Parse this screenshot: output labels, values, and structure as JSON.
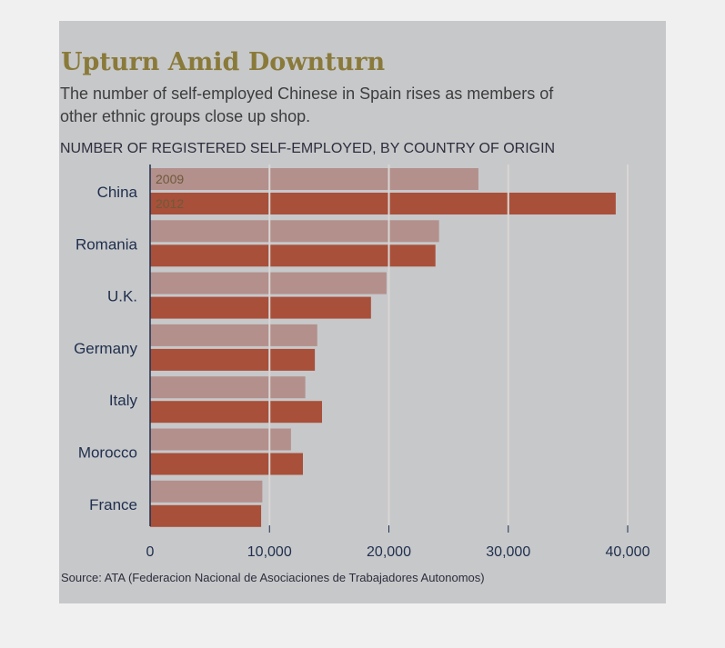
{
  "chart_data": {
    "type": "bar",
    "orientation": "horizontal",
    "title": "Upturn Amid Downturn",
    "subtitle_lines": [
      "The number of self-employed Chinese in Spain rises as members of",
      "other ethnic groups close up shop."
    ],
    "axis_title": "NUMBER OF REGISTERED SELF-EMPLOYED, BY COUNTRY OF ORIGIN",
    "categories": [
      "China",
      "Romania",
      "U.K.",
      "Germany",
      "Italy",
      "Morocco",
      "France"
    ],
    "series": [
      {
        "name": "2009",
        "values": [
          27500,
          24200,
          19800,
          14000,
          13000,
          11800,
          9400
        ]
      },
      {
        "name": "2012",
        "values": [
          39000,
          23900,
          18500,
          13800,
          14400,
          12800,
          9300
        ]
      }
    ],
    "xlim": [
      0,
      40000
    ],
    "xticks": [
      0,
      10000,
      20000,
      30000,
      40000
    ],
    "xtick_labels": [
      "0",
      "10,000",
      "20,000",
      "30,000",
      "40,000"
    ],
    "grid": true,
    "colors": {
      "2009": "#b3908c",
      "2012": "#a8503a",
      "background": "#c7c8ca"
    },
    "source": "Source: ATA (Federacion Nacional de Asociaciones de Trabajadores Autonomos)"
  }
}
